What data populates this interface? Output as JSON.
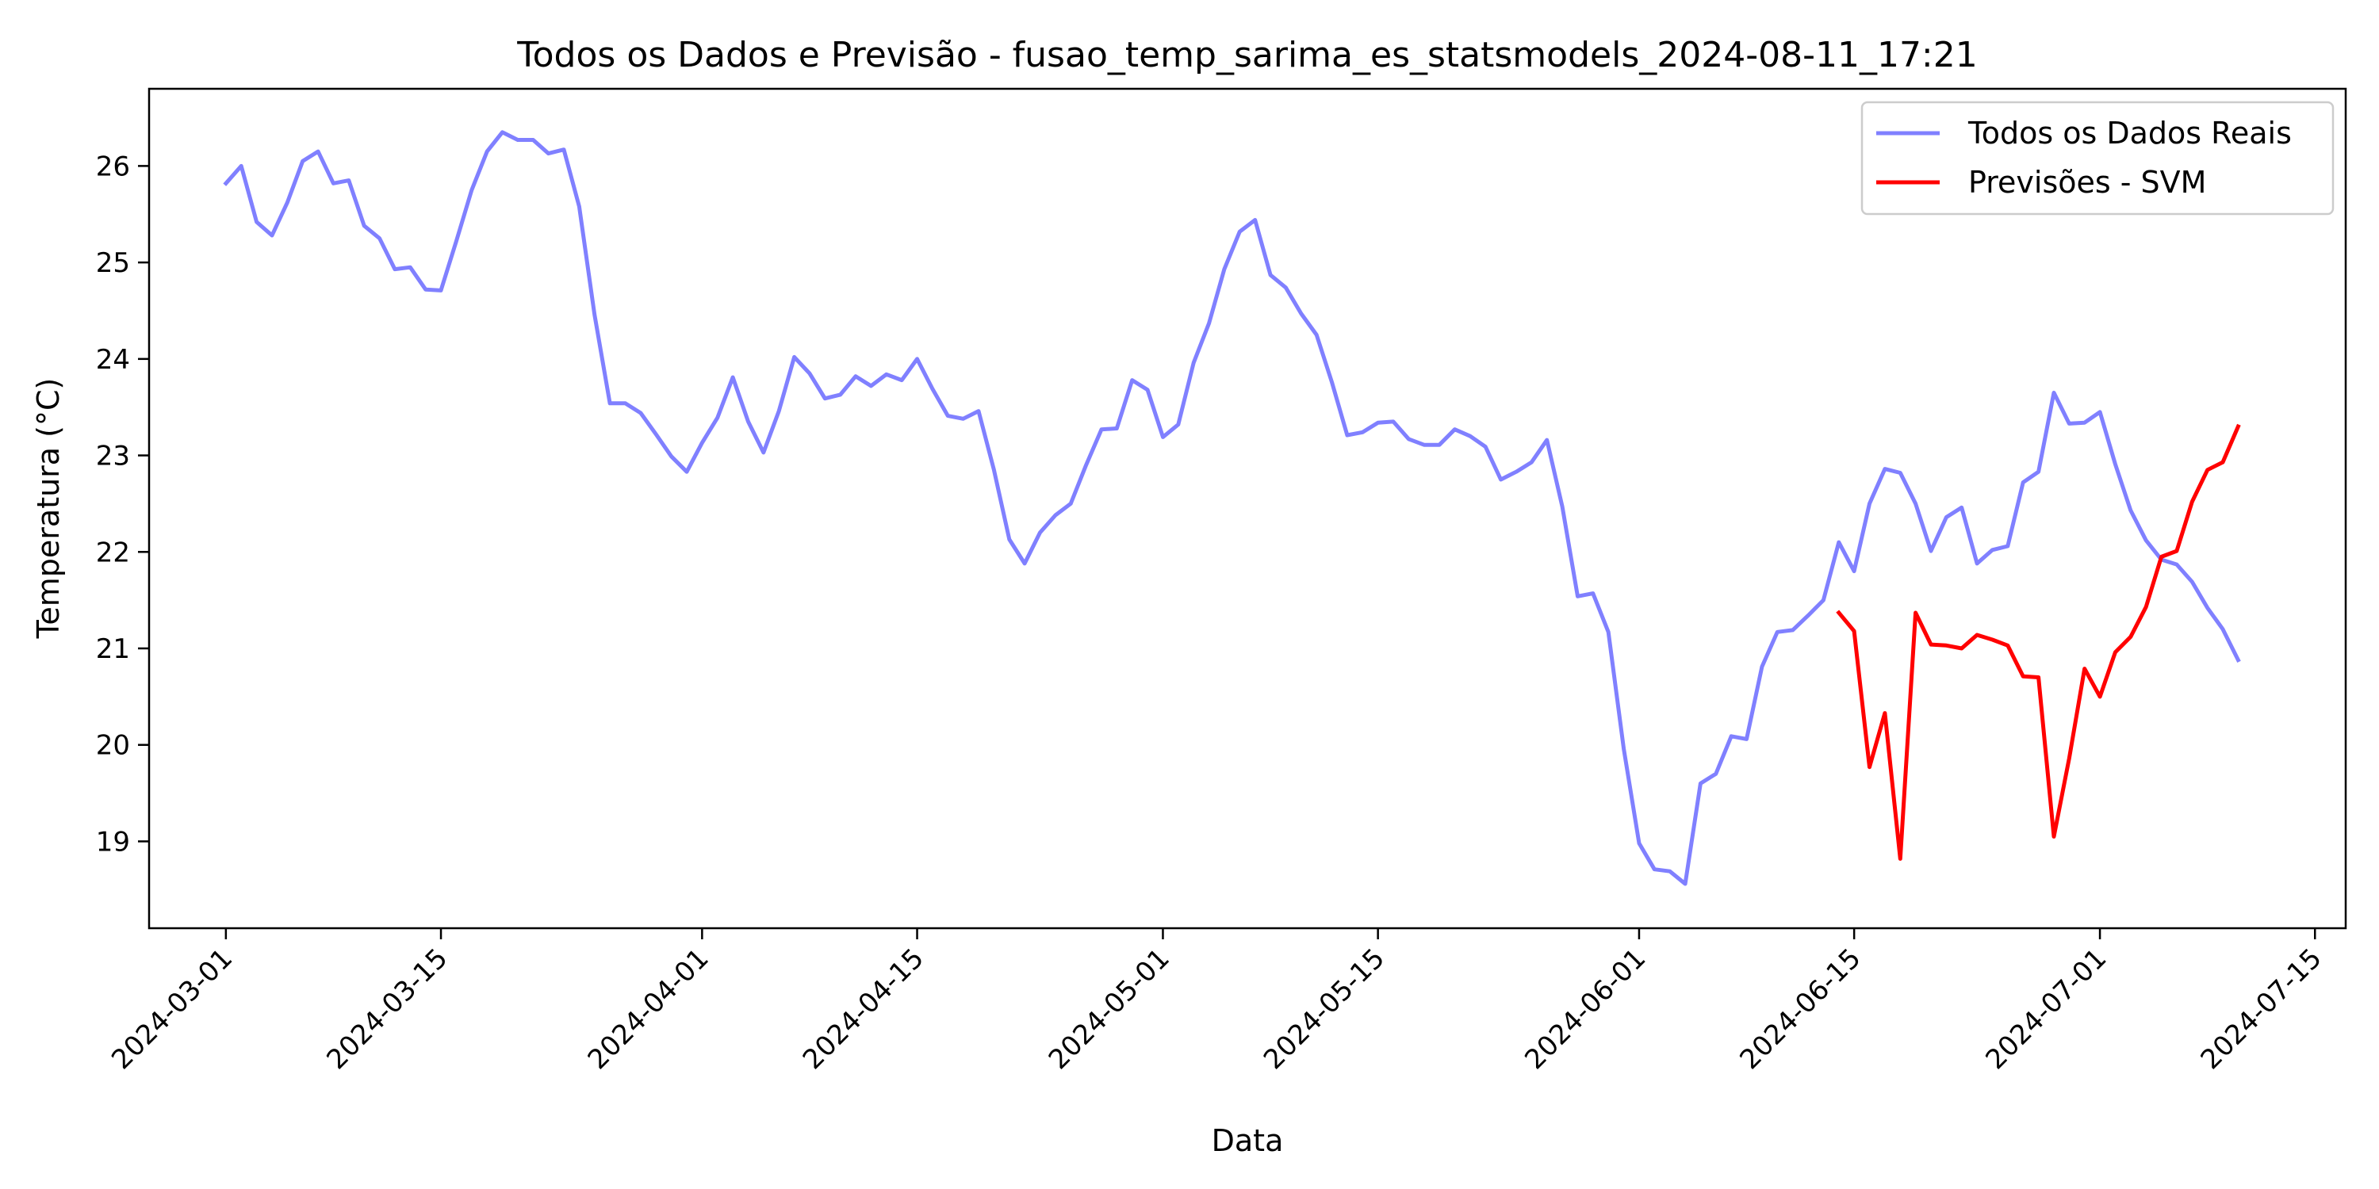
{
  "chart_data": {
    "type": "line",
    "title": "Todos os Dados e Previsão - fusao_temp_sarima_es_statsmodels_2024-08-11_17:21",
    "xlabel": "Data",
    "ylabel": "Temperatura (°C)",
    "xlim": [
      "2024-02-25",
      "2024-07-17"
    ],
    "ylim": [
      18.1,
      26.8
    ],
    "x_ticks": [
      "2024-03-01",
      "2024-03-15",
      "2024-04-01",
      "2024-04-15",
      "2024-05-01",
      "2024-05-15",
      "2024-06-01",
      "2024-06-15",
      "2024-07-01",
      "2024-07-15"
    ],
    "y_ticks": [
      "19",
      "20",
      "21",
      "22",
      "23",
      "24",
      "25",
      "26"
    ],
    "grid": false,
    "legend_position": "top-right",
    "series": [
      {
        "name": "Todos os Dados Reais",
        "color": "#8080ff",
        "x": [
          "2024-03-01",
          "2024-03-02",
          "2024-03-03",
          "2024-03-04",
          "2024-03-05",
          "2024-03-06",
          "2024-03-07",
          "2024-03-08",
          "2024-03-09",
          "2024-03-10",
          "2024-03-11",
          "2024-03-12",
          "2024-03-13",
          "2024-03-14",
          "2024-03-15",
          "2024-03-16",
          "2024-03-17",
          "2024-03-18",
          "2024-03-19",
          "2024-03-20",
          "2024-03-21",
          "2024-03-22",
          "2024-03-23",
          "2024-03-24",
          "2024-03-25",
          "2024-03-26",
          "2024-03-27",
          "2024-03-28",
          "2024-03-29",
          "2024-03-30",
          "2024-03-31",
          "2024-04-01",
          "2024-04-02",
          "2024-04-03",
          "2024-04-04",
          "2024-04-05",
          "2024-04-06",
          "2024-04-07",
          "2024-04-08",
          "2024-04-09",
          "2024-04-10",
          "2024-04-11",
          "2024-04-12",
          "2024-04-13",
          "2024-04-14",
          "2024-04-15",
          "2024-04-16",
          "2024-04-17",
          "2024-04-18",
          "2024-04-19",
          "2024-04-20",
          "2024-04-21",
          "2024-04-22",
          "2024-04-23",
          "2024-04-24",
          "2024-04-25",
          "2024-04-26",
          "2024-04-27",
          "2024-04-28",
          "2024-04-29",
          "2024-04-30",
          "2024-05-01",
          "2024-05-02",
          "2024-05-03",
          "2024-05-04",
          "2024-05-05",
          "2024-05-06",
          "2024-05-07",
          "2024-05-08",
          "2024-05-09",
          "2024-05-10",
          "2024-05-11",
          "2024-05-12",
          "2024-05-13",
          "2024-05-14",
          "2024-05-15",
          "2024-05-16",
          "2024-05-17",
          "2024-05-18",
          "2024-05-19",
          "2024-05-20",
          "2024-05-21",
          "2024-05-22",
          "2024-05-23",
          "2024-05-24",
          "2024-05-25",
          "2024-05-26",
          "2024-05-27",
          "2024-05-28",
          "2024-05-29",
          "2024-05-30",
          "2024-05-31",
          "2024-06-01",
          "2024-06-02",
          "2024-06-03",
          "2024-06-04",
          "2024-06-05",
          "2024-06-06",
          "2024-06-07",
          "2024-06-08",
          "2024-06-09",
          "2024-06-10",
          "2024-06-11",
          "2024-06-12",
          "2024-06-13",
          "2024-06-14",
          "2024-06-15",
          "2024-06-16",
          "2024-06-17",
          "2024-06-18",
          "2024-06-19",
          "2024-06-20",
          "2024-06-21",
          "2024-06-22",
          "2024-06-23",
          "2024-06-24",
          "2024-06-25",
          "2024-06-26",
          "2024-06-27",
          "2024-06-28",
          "2024-06-29",
          "2024-06-30",
          "2024-07-01",
          "2024-07-02",
          "2024-07-03",
          "2024-07-04",
          "2024-07-05",
          "2024-07-06",
          "2024-07-07",
          "2024-07-08",
          "2024-07-09",
          "2024-07-10"
        ],
        "values": [
          25.82,
          26.0,
          25.42,
          25.28,
          25.62,
          26.05,
          26.15,
          25.82,
          25.85,
          25.38,
          25.25,
          24.93,
          24.95,
          24.72,
          24.71,
          25.22,
          25.75,
          26.15,
          26.35,
          26.27,
          26.27,
          26.13,
          26.17,
          25.58,
          24.46,
          23.54,
          23.54,
          23.44,
          23.22,
          22.99,
          22.83,
          23.13,
          23.39,
          23.81,
          23.35,
          23.03,
          23.46,
          24.02,
          23.85,
          23.59,
          23.63,
          23.82,
          23.72,
          23.84,
          23.78,
          24.0,
          23.69,
          23.41,
          23.38,
          23.46,
          22.85,
          22.13,
          21.88,
          22.2,
          22.38,
          22.5,
          22.9,
          23.27,
          23.28,
          23.78,
          23.68,
          23.19,
          23.32,
          23.96,
          24.37,
          24.93,
          25.32,
          25.44,
          24.87,
          24.74,
          24.47,
          24.25,
          23.76,
          23.21,
          23.24,
          23.34,
          23.35,
          23.17,
          23.11,
          23.11,
          23.27,
          23.2,
          23.09,
          22.75,
          22.83,
          22.93,
          23.16,
          22.47,
          21.54,
          21.57,
          21.17,
          19.96,
          18.98,
          18.71,
          18.69,
          18.56,
          19.6,
          19.7,
          20.09,
          20.06,
          20.81,
          21.17,
          21.19,
          21.34,
          21.5,
          22.1,
          21.8,
          22.5,
          22.86,
          22.82,
          22.5,
          22.01,
          22.36,
          22.46,
          21.88,
          22.02,
          22.06,
          22.72,
          22.83,
          23.65,
          23.33,
          23.34,
          23.45,
          22.91,
          22.43,
          22.12,
          21.92,
          21.87,
          21.69,
          21.42,
          21.2,
          20.88
        ]
      },
      {
        "name": "Previsões - SVM",
        "color": "#ff0000",
        "x": [
          "2024-06-14",
          "2024-06-15",
          "2024-06-16",
          "2024-06-17",
          "2024-06-18",
          "2024-06-19",
          "2024-06-20",
          "2024-06-21",
          "2024-06-22",
          "2024-06-23",
          "2024-06-24",
          "2024-06-25",
          "2024-06-26",
          "2024-06-27",
          "2024-06-28",
          "2024-06-29",
          "2024-06-30",
          "2024-07-01",
          "2024-07-02",
          "2024-07-03",
          "2024-07-04",
          "2024-07-05",
          "2024-07-06",
          "2024-07-07",
          "2024-07-08",
          "2024-07-09",
          "2024-07-10"
        ],
        "values": [
          21.37,
          21.18,
          19.77,
          20.33,
          18.82,
          21.37,
          21.04,
          21.03,
          21.0,
          21.14,
          21.09,
          21.03,
          20.71,
          20.7,
          19.05,
          19.86,
          20.79,
          20.5,
          20.96,
          21.12,
          21.43,
          21.95,
          22.01,
          22.52,
          22.85,
          22.93,
          23.3
        ]
      }
    ]
  }
}
